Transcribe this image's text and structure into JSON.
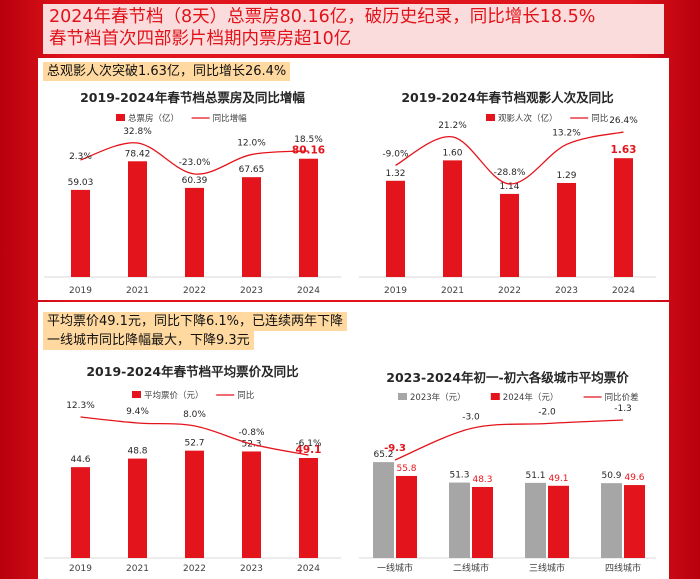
{
  "header": {
    "line1": "2024年春节档（8天）总票房80.16亿，破历史纪录，同比增长18.5%",
    "line2": "春节档首次四部影片档期内票房超10亿"
  },
  "highlights": {
    "h1": "总观影人次突破1.63亿，同比增长26.4%",
    "h2": "平均票价49.1元，同比下降6.1%，已连续两年下降",
    "h3": "一线城市同比降幅最大，下降9.3元"
  },
  "colors": {
    "bar": "#e4141c",
    "bar_gray": "#a6a6a6",
    "line": "#e4141c",
    "highlight": "#e4141c"
  },
  "chart_data": [
    {
      "type": "bar",
      "title": "2019-2024年春节档总票房及同比增幅",
      "categories": [
        "2019",
        "2021",
        "2022",
        "2023",
        "2024"
      ],
      "series": [
        {
          "name": "总票房（亿）",
          "values": [
            59.03,
            78.42,
            60.39,
            67.65,
            80.16
          ],
          "labels": [
            "59.03",
            "78.42",
            "60.39",
            "67.65",
            "80.16"
          ]
        },
        {
          "name": "同比增幅",
          "type": "line",
          "values": [
            2.3,
            32.8,
            -23.0,
            12.0,
            18.5
          ],
          "labels": [
            "2.3%",
            "32.8%",
            "-23.0%",
            "12.0%",
            "18.5%"
          ]
        }
      ],
      "highlight_index": 4
    },
    {
      "type": "bar",
      "title": "2019-2024年春节档观影人次及同比",
      "categories": [
        "2019",
        "2021",
        "2022",
        "2023",
        "2024"
      ],
      "series": [
        {
          "name": "观影人次（亿）",
          "values": [
            1.32,
            1.6,
            1.14,
            1.29,
            1.63
          ],
          "labels": [
            "1.32",
            "1.60",
            "1.14",
            "1.29",
            "1.63"
          ]
        },
        {
          "name": "同比",
          "type": "line",
          "values": [
            -9.0,
            21.2,
            -28.8,
            13.2,
            26.4
          ],
          "labels": [
            "-9.0%",
            "21.2%",
            "-28.8%",
            "13.2%",
            "26.4%"
          ]
        }
      ],
      "highlight_index": 4
    },
    {
      "type": "bar",
      "title": "2019-2024年春节档平均票价及同比",
      "categories": [
        "2019",
        "2021",
        "2022",
        "2023",
        "2024"
      ],
      "series": [
        {
          "name": "平均票价（元）",
          "values": [
            44.6,
            48.8,
            52.7,
            52.3,
            49.1
          ],
          "labels": [
            "44.6",
            "48.8",
            "52.7",
            "52.3",
            "49.1"
          ]
        },
        {
          "name": "同比",
          "type": "line",
          "values": [
            12.3,
            9.4,
            8.0,
            -0.8,
            -6.1
          ],
          "labels": [
            "12.3%",
            "9.4%",
            "8.0%",
            "-0.8%",
            "-6.1%"
          ]
        }
      ],
      "highlight_index": 4
    },
    {
      "type": "bar",
      "title": "2023-2024年初一-初六各级城市平均票价",
      "categories": [
        "一线城市",
        "二线城市",
        "三线城市",
        "四线城市"
      ],
      "series": [
        {
          "name": "2023年（元）",
          "values": [
            65.2,
            51.3,
            51.1,
            50.9
          ],
          "labels": [
            "65.2",
            "51.3",
            "51.1",
            "50.9"
          ]
        },
        {
          "name": "2024年（元）",
          "values": [
            55.8,
            48.3,
            49.1,
            49.6
          ],
          "labels": [
            "55.8",
            "48.3",
            "49.1",
            "49.6"
          ]
        },
        {
          "name": "同比价差",
          "type": "line",
          "values": [
            -9.3,
            -3.0,
            -2.0,
            -1.3
          ],
          "labels": [
            "-9.3",
            "-3.0",
            "-2.0",
            "-1.3"
          ]
        }
      ],
      "highlight_index": 0
    }
  ]
}
